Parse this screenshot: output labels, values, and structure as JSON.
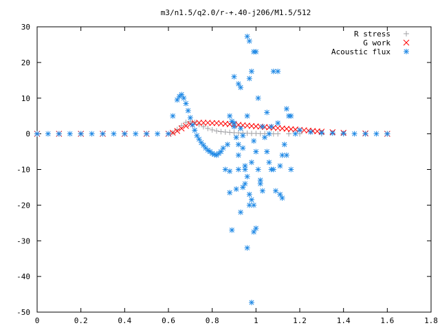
{
  "chart_data": {
    "type": "scatter",
    "title": "m3/n1.5/q2.0/r-+.40-j206/M1.5/512",
    "xlabel": "",
    "ylabel": "",
    "xlim": [
      0,
      1.8
    ],
    "ylim": [
      -50,
      30
    ],
    "xticks": [
      "0",
      "0.2",
      "0.4",
      "0.6",
      "0.8",
      "1",
      "1.2",
      "1.4",
      "1.6",
      "1.8"
    ],
    "yticks": [
      "30",
      "20",
      "10",
      "0",
      "-10",
      "-20",
      "-30",
      "-40",
      "-50"
    ],
    "grid": false,
    "legend_position": "top-right",
    "series": [
      {
        "name": "R stress",
        "marker": "plus",
        "color": "#a0a0a4",
        "x": [
          0.0,
          0.1,
          0.2,
          0.3,
          0.4,
          0.5,
          0.6,
          0.62,
          0.64,
          0.66,
          0.68,
          0.7,
          0.72,
          0.74,
          0.76,
          0.78,
          0.8,
          0.82,
          0.84,
          0.86,
          0.88,
          0.9,
          0.92,
          0.94,
          0.96,
          0.98,
          1.0,
          1.02,
          1.04,
          1.06,
          1.08,
          1.1,
          1.15,
          1.2,
          1.3,
          1.4,
          1.5,
          1.6
        ],
        "y": [
          0,
          0,
          0,
          0,
          0,
          0,
          0,
          0.3,
          1.2,
          2.3,
          3.2,
          3.5,
          3.2,
          2.6,
          2.0,
          1.5,
          1.1,
          0.8,
          0.6,
          0.5,
          0.4,
          0.3,
          0.25,
          0.2,
          0.15,
          0.1,
          0.1,
          0.05,
          0.05,
          0,
          0,
          0,
          0,
          0,
          0,
          0,
          0,
          0
        ]
      },
      {
        "name": "G work",
        "marker": "cross",
        "color": "#ff0000",
        "x": [
          0.0,
          0.1,
          0.2,
          0.3,
          0.4,
          0.5,
          0.6,
          0.62,
          0.64,
          0.66,
          0.68,
          0.7,
          0.72,
          0.74,
          0.76,
          0.78,
          0.8,
          0.82,
          0.84,
          0.86,
          0.88,
          0.9,
          0.92,
          0.94,
          0.96,
          0.98,
          1.0,
          1.02,
          1.04,
          1.06,
          1.08,
          1.1,
          1.12,
          1.14,
          1.16,
          1.18,
          1.2,
          1.22,
          1.24,
          1.26,
          1.28,
          1.3,
          1.35,
          1.4,
          1.5,
          1.6
        ],
        "y": [
          0,
          0,
          0,
          0,
          0,
          0,
          0,
          0.3,
          0.8,
          1.5,
          2.2,
          2.7,
          3.0,
          3.1,
          3.1,
          3.1,
          3.0,
          3.0,
          2.9,
          2.8,
          2.7,
          2.6,
          2.5,
          2.4,
          2.3,
          2.2,
          2.1,
          2.0,
          1.9,
          1.8,
          1.7,
          1.6,
          1.5,
          1.4,
          1.3,
          1.2,
          1.1,
          1.0,
          0.9,
          0.8,
          0.7,
          0.6,
          0.45,
          0.3,
          0.1,
          0
        ]
      },
      {
        "name": "Acoustic flux",
        "marker": "star",
        "color": "#1e88e5",
        "x": [
          0.0,
          0.05,
          0.1,
          0.15,
          0.2,
          0.25,
          0.3,
          0.35,
          0.4,
          0.45,
          0.5,
          0.55,
          0.6,
          0.62,
          0.64,
          0.65,
          0.66,
          0.67,
          0.68,
          0.69,
          0.7,
          0.71,
          0.72,
          0.73,
          0.74,
          0.75,
          0.76,
          0.77,
          0.78,
          0.79,
          0.8,
          0.81,
          0.82,
          0.83,
          0.84,
          0.85,
          0.86,
          0.87,
          0.88,
          0.88,
          0.89,
          0.9,
          0.9,
          0.91,
          0.92,
          0.92,
          0.93,
          0.94,
          0.94,
          0.95,
          0.96,
          0.96,
          0.97,
          0.97,
          0.98,
          0.98,
          0.99,
          0.99,
          1.0,
          1.0,
          1.01,
          1.02,
          1.03,
          1.04,
          1.05,
          1.06,
          1.07,
          1.08,
          1.09,
          1.1,
          1.11,
          1.12,
          1.13,
          1.14,
          1.15,
          1.16,
          1.18,
          1.2,
          1.25,
          1.3,
          1.35,
          1.4,
          1.45,
          1.5,
          1.55,
          1.6,
          0.88,
          0.91,
          0.93,
          0.95,
          0.97,
          0.99,
          0.96,
          0.98,
          1.0,
          0.95,
          0.93,
          0.97,
          1.01,
          1.08,
          1.1,
          1.05,
          1.12,
          1.06,
          1.14,
          1.16,
          0.89,
          0.92,
          0.94,
          0.98,
          1.02,
          1.07,
          0.9,
          0.92,
          0.96,
          0.99,
          1.03,
          1.11
        ],
        "y": [
          0,
          0,
          0,
          0,
          0,
          0,
          0,
          0,
          0,
          0,
          0,
          0,
          0,
          5,
          9.5,
          10.5,
          11,
          10,
          8.5,
          6.5,
          4.5,
          2.5,
          1,
          -0.5,
          -1.5,
          -2.5,
          -3.2,
          -4,
          -4.6,
          -5,
          -5.5,
          -5.8,
          -6,
          -5.5,
          -5,
          -4,
          -10,
          -3,
          -10.5,
          5,
          3.5,
          3,
          2,
          -1,
          -3,
          -6,
          1.5,
          -0.5,
          -4,
          -9,
          27.3,
          -12,
          26,
          15.5,
          17.5,
          -8,
          23,
          -20,
          23,
          -5,
          -10,
          -13,
          -16,
          -1,
          -5,
          0,
          2,
          17.5,
          -16,
          17.5,
          -17,
          -18,
          -3,
          -6,
          5,
          5,
          0,
          1,
          0.5,
          0.3,
          0.2,
          0.1,
          0,
          0,
          0,
          0,
          -16.5,
          -15.5,
          -22,
          -14,
          -20,
          -27.5,
          -32,
          -47.3,
          -26.5,
          -10,
          13,
          -17,
          10,
          -10,
          3,
          6,
          -6,
          -8,
          7,
          -10,
          -27,
          -10,
          -15,
          -18.5,
          -14,
          -10,
          16,
          14,
          5,
          -2,
          2,
          -9
        ]
      }
    ]
  }
}
